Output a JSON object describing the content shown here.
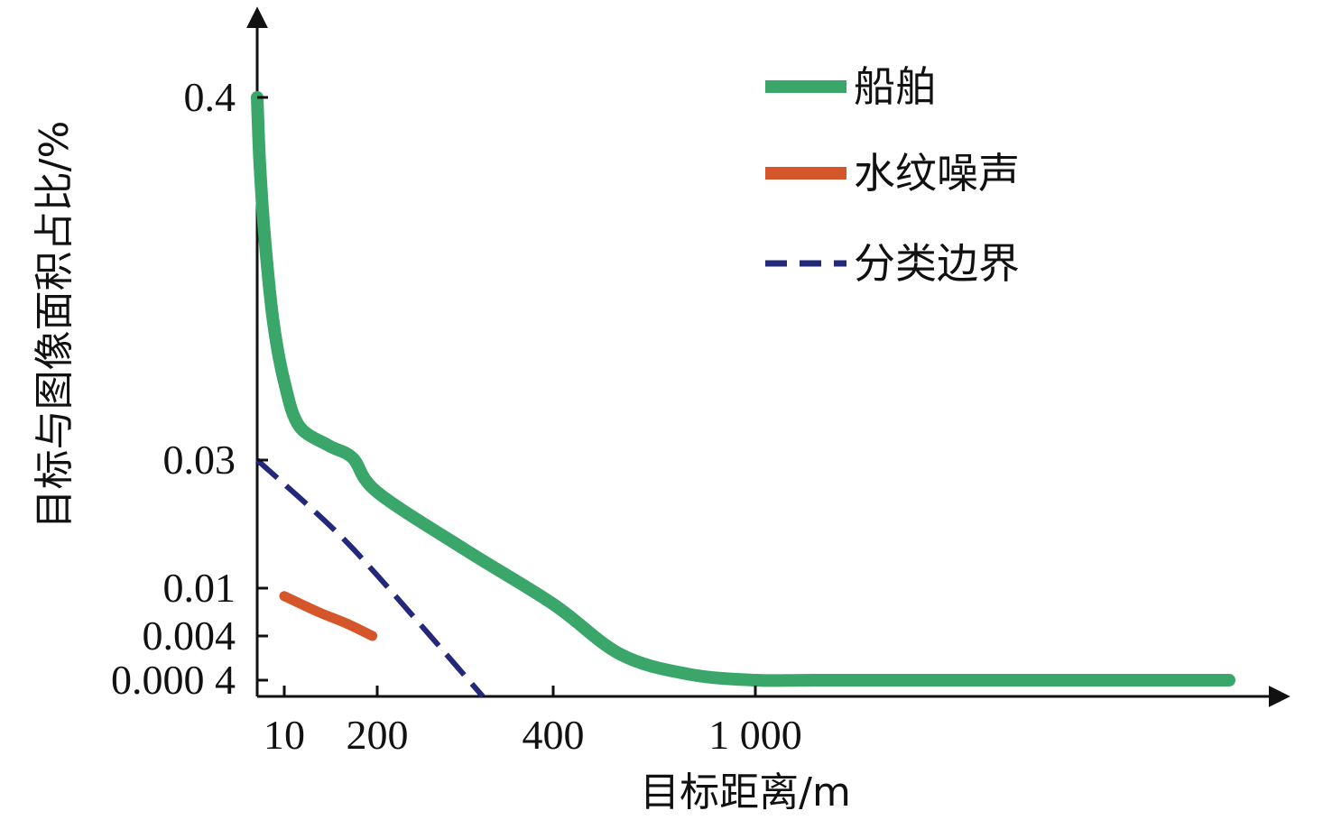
{
  "chart_data": {
    "type": "line",
    "xlabel": "目标距离/m",
    "ylabel": "目标与图像面积占比/%",
    "x_ticks": [
      {
        "value": 10,
        "label": "10"
      },
      {
        "value": 200,
        "label": "200"
      },
      {
        "value": 400,
        "label": "400"
      },
      {
        "value": 1000,
        "label": "1 000"
      }
    ],
    "y_ticks": [
      {
        "value": 0.4,
        "label": "0.4"
      },
      {
        "value": 0.03,
        "label": "0.03"
      },
      {
        "value": 0.01,
        "label": "0.01"
      },
      {
        "value": 0.004,
        "label": "0.004"
      },
      {
        "value": 0.0004,
        "label": "0.000 4"
      }
    ],
    "legend_position": "top-right",
    "series": [
      {
        "name": "船舶",
        "color": "#3aa66a",
        "style": "solid",
        "points": [
          [
            0,
            0.4
          ],
          [
            1,
            0.33
          ],
          [
            3,
            0.25
          ],
          [
            6,
            0.17
          ],
          [
            10,
            0.11
          ],
          [
            40,
            0.065
          ],
          [
            100,
            0.045
          ],
          [
            150,
            0.032
          ],
          [
            200,
            0.025
          ],
          [
            300,
            0.016
          ],
          [
            400,
            0.008
          ],
          [
            600,
            0.0025
          ],
          [
            800,
            0.0009
          ],
          [
            1000,
            0.0004
          ],
          [
            1500,
            0.0004
          ],
          [
            2500,
            0.0004
          ],
          [
            5000,
            0.0004
          ]
        ]
      },
      {
        "name": "水纹噪声",
        "color": "#d4562a",
        "style": "solid",
        "points": [
          [
            10,
            0.009
          ],
          [
            80,
            0.007
          ],
          [
            140,
            0.0055
          ],
          [
            190,
            0.004
          ]
        ]
      },
      {
        "name": "分类边界",
        "color": "#23287a",
        "style": "dashed",
        "points": [
          [
            0,
            0.03
          ],
          [
            100,
            0.02
          ],
          [
            200,
            0.012
          ],
          [
            320,
            0.0
          ]
        ]
      }
    ]
  }
}
